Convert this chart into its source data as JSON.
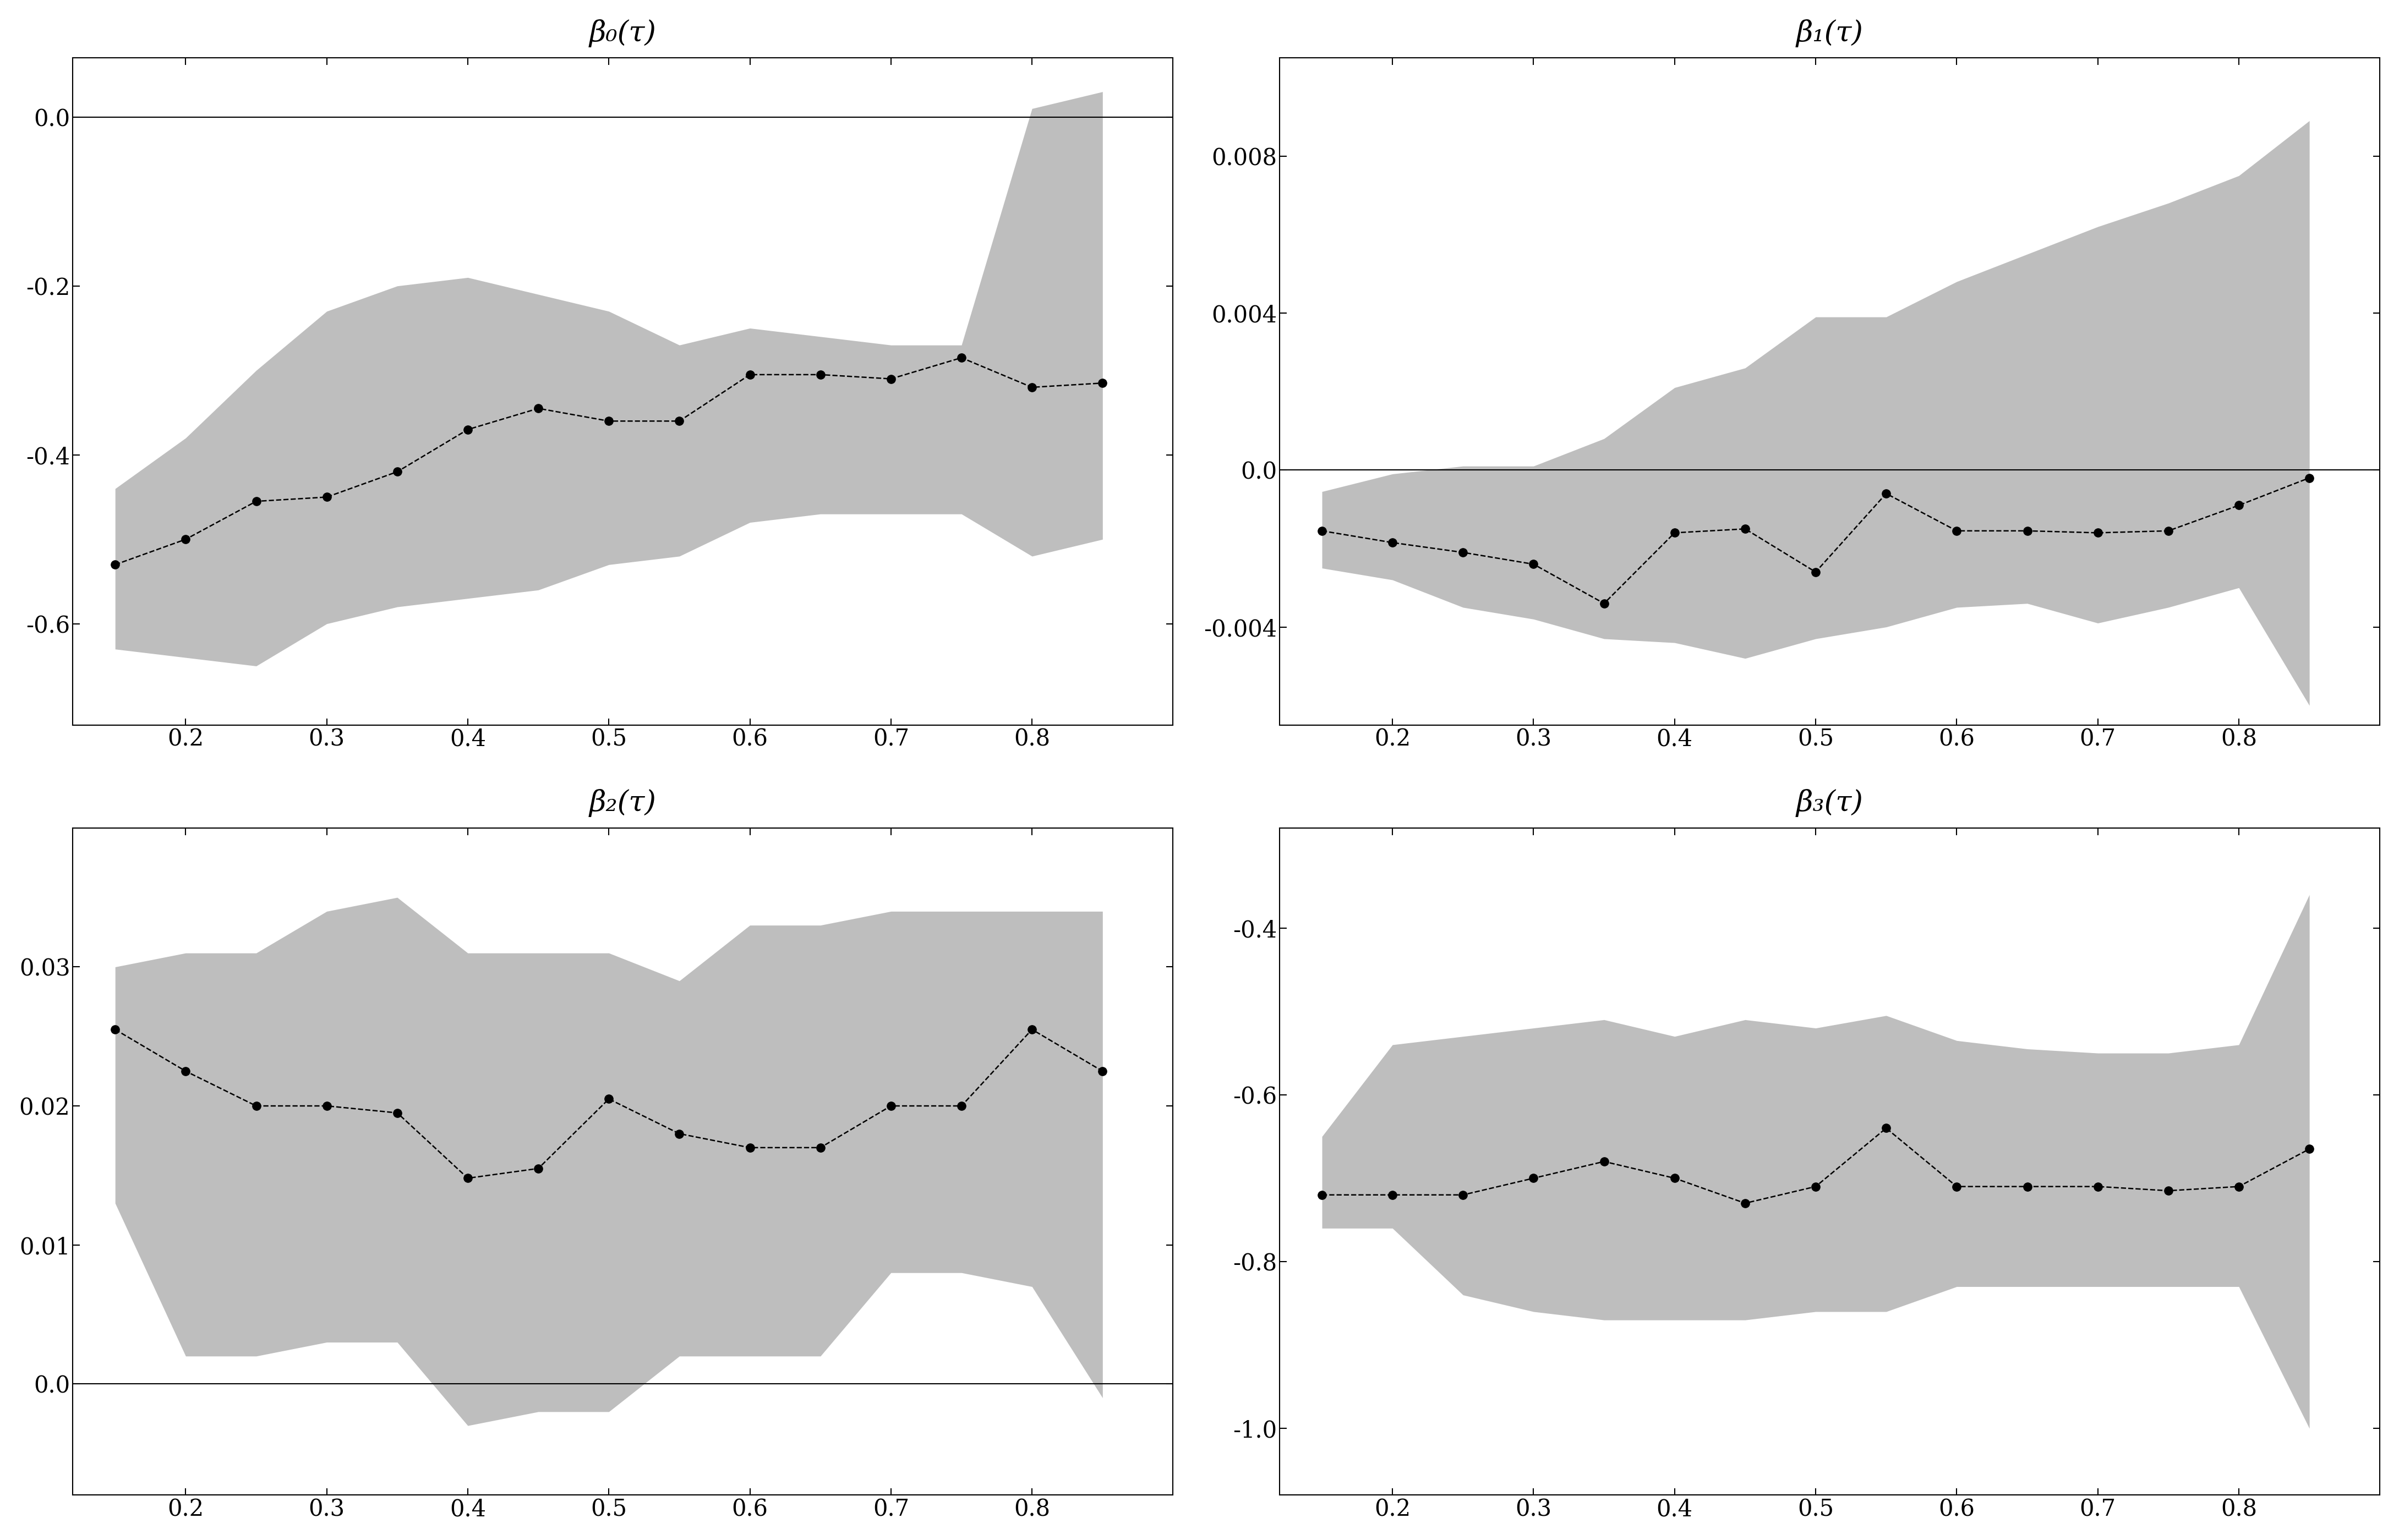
{
  "tau": [
    0.15,
    0.2,
    0.25,
    0.3,
    0.35,
    0.4,
    0.45,
    0.5,
    0.55,
    0.6,
    0.65,
    0.7,
    0.75,
    0.8,
    0.85
  ],
  "beta0_est": [
    -0.53,
    -0.5,
    -0.455,
    -0.45,
    -0.42,
    -0.37,
    -0.345,
    -0.36,
    -0.36,
    -0.305,
    -0.305,
    -0.31,
    -0.285,
    -0.32,
    -0.315
  ],
  "beta0_upper": [
    -0.44,
    -0.38,
    -0.3,
    -0.23,
    -0.2,
    -0.19,
    -0.21,
    -0.23,
    -0.27,
    -0.25,
    -0.26,
    -0.27,
    -0.27,
    0.01,
    0.03
  ],
  "beta0_lower": [
    -0.63,
    -0.64,
    -0.65,
    -0.6,
    -0.58,
    -0.57,
    -0.56,
    -0.53,
    -0.52,
    -0.48,
    -0.47,
    -0.47,
    -0.47,
    -0.52,
    -0.5
  ],
  "beta1_est": [
    -0.00155,
    -0.00185,
    -0.0021,
    -0.0024,
    -0.0034,
    -0.0016,
    -0.0015,
    -0.0026,
    -0.0006,
    -0.00155,
    -0.00155,
    -0.0016,
    -0.00155,
    -0.0009,
    -0.0002
  ],
  "beta1_upper": [
    -0.00055,
    -0.0001,
    0.0001,
    0.0001,
    0.0008,
    0.0021,
    0.0026,
    0.0039,
    0.0039,
    0.0048,
    0.0055,
    0.0062,
    0.0068,
    0.0075,
    0.0089
  ],
  "beta1_lower": [
    -0.0025,
    -0.0028,
    -0.0035,
    -0.0038,
    -0.0043,
    -0.0044,
    -0.0048,
    -0.0043,
    -0.004,
    -0.0035,
    -0.0034,
    -0.0039,
    -0.0035,
    -0.003,
    -0.006
  ],
  "beta2_est": [
    0.0255,
    0.0225,
    0.02,
    0.02,
    0.0195,
    0.0148,
    0.0155,
    0.0205,
    0.018,
    0.017,
    0.017,
    0.02,
    0.02,
    0.0255,
    0.0225
  ],
  "beta2_upper": [
    0.03,
    0.031,
    0.031,
    0.034,
    0.035,
    0.031,
    0.031,
    0.031,
    0.029,
    0.033,
    0.033,
    0.034,
    0.034,
    0.034,
    0.034
  ],
  "beta2_lower": [
    0.013,
    0.002,
    0.002,
    0.003,
    0.003,
    -0.003,
    -0.002,
    -0.002,
    0.002,
    0.002,
    0.002,
    0.008,
    0.008,
    0.007,
    -0.001
  ],
  "beta3_est": [
    -0.72,
    -0.72,
    -0.72,
    -0.7,
    -0.68,
    -0.7,
    -0.73,
    -0.71,
    -0.64,
    -0.71,
    -0.71,
    -0.71,
    -0.715,
    -0.71,
    -0.665
  ],
  "beta3_upper": [
    -0.65,
    -0.54,
    -0.53,
    -0.52,
    -0.51,
    -0.53,
    -0.51,
    -0.52,
    -0.505,
    -0.535,
    -0.545,
    -0.55,
    -0.55,
    -0.54,
    -0.36
  ],
  "beta3_lower": [
    -0.76,
    -0.76,
    -0.84,
    -0.86,
    -0.87,
    -0.87,
    -0.87,
    -0.86,
    -0.86,
    -0.83,
    -0.83,
    -0.83,
    -0.83,
    -0.83,
    -1.0
  ],
  "background_color": "#ffffff",
  "band_color": "#bebebe",
  "line_color": "#000000",
  "hline_color": "#000000",
  "titles": [
    "β₀(τ)",
    "β₁(τ)",
    "β₂(τ)",
    "β₃(τ)"
  ],
  "beta0_ylim": [
    -0.72,
    0.07
  ],
  "beta0_yticks": [
    0.0,
    -0.2,
    -0.4,
    -0.6
  ],
  "beta1_ylim": [
    -0.0065,
    0.0105
  ],
  "beta1_yticks": [
    0.008,
    0.004,
    0.0,
    -0.004
  ],
  "beta2_ylim": [
    -0.008,
    0.04
  ],
  "beta2_yticks": [
    0.03,
    0.02,
    0.01,
    0.0
  ],
  "beta3_ylim": [
    -1.08,
    -0.28
  ],
  "beta3_yticks": [
    -0.4,
    -0.6,
    -0.8,
    -1.0
  ],
  "xticks": [
    0.2,
    0.3,
    0.4,
    0.5,
    0.6,
    0.7,
    0.8
  ],
  "xlim": [
    0.12,
    0.9
  ]
}
